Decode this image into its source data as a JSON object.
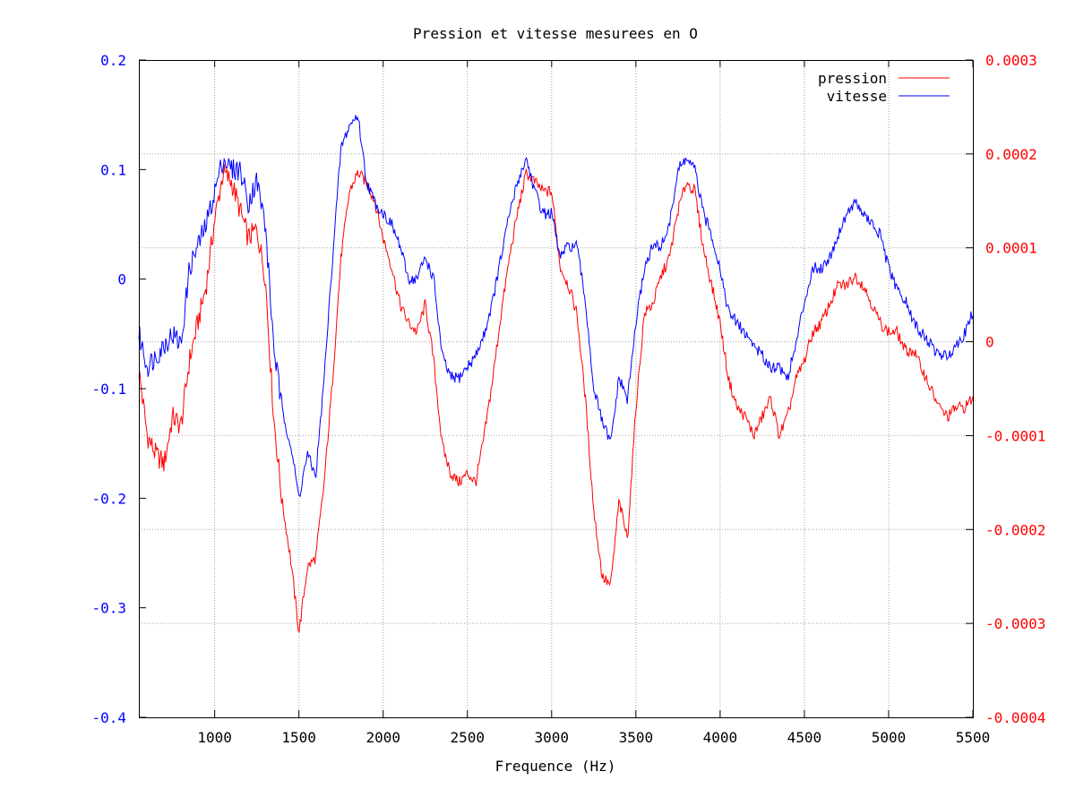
{
  "chart_data": {
    "type": "line",
    "title": "Pression et vitesse mesurees en O",
    "xlabel": "Frequence (Hz)",
    "ylabel_left": "",
    "ylabel_right": "",
    "xlim": [
      550,
      5500
    ],
    "ylim_left": [
      -0.4,
      0.2
    ],
    "ylim_right": [
      -0.0004,
      0.0003
    ],
    "xticks": [
      1000,
      1500,
      2000,
      2500,
      3000,
      3500,
      4000,
      4500,
      5000,
      5500
    ],
    "xtick_labels": [
      "1000",
      "1500",
      "2000",
      "2500",
      "3000",
      "3500",
      "4000",
      "4500",
      "5000",
      "5500"
    ],
    "yticks_left": [
      0.2,
      0.1,
      0,
      -0.1,
      -0.2,
      -0.3,
      -0.4
    ],
    "ytick_labels_left": [
      "0.2",
      "0.1",
      "0",
      "-0.1",
      "-0.2",
      "-0.3",
      "-0.4"
    ],
    "yticks_right": [
      0.0003,
      0.0002,
      0.0001,
      0,
      -0.0001,
      -0.0002,
      -0.0003,
      -0.0004
    ],
    "ytick_labels_right": [
      "0.0003",
      "0.0002",
      "0.0001",
      "0",
      "-0.0001",
      "-0.0002",
      "-0.0003",
      "-0.0004"
    ],
    "grid": true,
    "legend_position": "top-right",
    "colors": {
      "left_axis": "#0000ff",
      "right_axis": "#ff0000"
    },
    "series": [
      {
        "name": "pression",
        "axis": "right",
        "color": "#ff0000",
        "x": [
          550,
          600,
          650,
          700,
          750,
          800,
          850,
          900,
          950,
          1000,
          1050,
          1100,
          1150,
          1200,
          1250,
          1300,
          1350,
          1400,
          1450,
          1500,
          1550,
          1600,
          1650,
          1700,
          1750,
          1800,
          1850,
          1900,
          1950,
          2000,
          2050,
          2100,
          2150,
          2200,
          2250,
          2300,
          2350,
          2400,
          2450,
          2500,
          2550,
          2600,
          2650,
          2700,
          2750,
          2800,
          2850,
          2900,
          2950,
          3000,
          3050,
          3100,
          3150,
          3200,
          3250,
          3300,
          3350,
          3400,
          3450,
          3500,
          3550,
          3600,
          3650,
          3700,
          3750,
          3800,
          3850,
          3900,
          3950,
          4000,
          4050,
          4100,
          4150,
          4200,
          4250,
          4300,
          4350,
          4400,
          4450,
          4500,
          4550,
          4600,
          4650,
          4700,
          4750,
          4800,
          4850,
          4900,
          4950,
          5000,
          5050,
          5100,
          5150,
          5200,
          5250,
          5300,
          5350,
          5400,
          5450,
          5500
        ],
        "y": [
          -3e-05,
          -0.0001,
          -0.00012,
          -0.00013,
          -8e-05,
          -9e-05,
          -2e-05,
          2e-05,
          6e-05,
          0.00013,
          0.00018,
          0.00017,
          0.00014,
          0.00011,
          0.00012,
          7e-05,
          -8e-05,
          -0.00017,
          -0.00023,
          -0.00031,
          -0.00024,
          -0.00023,
          -0.00015,
          -4e-05,
          9e-05,
          0.00016,
          0.00018,
          0.00017,
          0.00015,
          0.00011,
          8e-05,
          4e-05,
          2e-05,
          1e-05,
          4e-05,
          -2e-05,
          -0.00011,
          -0.00014,
          -0.00015,
          -0.00014,
          -0.00015,
          -0.0001,
          -4e-05,
          3e-05,
          9e-05,
          0.00014,
          0.00018,
          0.00017,
          0.00016,
          0.00016,
          8e-05,
          6e-05,
          3e-05,
          -6e-05,
          -0.00018,
          -0.00025,
          -0.00026,
          -0.00017,
          -0.00021,
          -7e-05,
          3e-05,
          4e-05,
          7e-05,
          9e-05,
          0.00014,
          0.00017,
          0.00016,
          0.0001,
          6e-05,
          2e-05,
          -4e-05,
          -7e-05,
          -8e-05,
          -0.0001,
          -8e-05,
          -6e-05,
          -0.0001,
          -8e-05,
          -4e-05,
          -2e-05,
          1e-05,
          2e-05,
          4e-05,
          6e-05,
          6e-05,
          7e-05,
          6e-05,
          4e-05,
          2e-05,
          1e-05,
          1e-05,
          -1e-05,
          -1e-05,
          -3e-05,
          -5e-05,
          -7e-05,
          -8e-05,
          -7e-05,
          -7e-05,
          -6e-05
        ]
      },
      {
        "name": "vitesse",
        "axis": "left",
        "color": "#0000ff",
        "x": [
          550,
          600,
          650,
          700,
          750,
          800,
          850,
          900,
          950,
          1000,
          1050,
          1100,
          1150,
          1200,
          1250,
          1300,
          1350,
          1400,
          1450,
          1500,
          1550,
          1600,
          1650,
          1700,
          1750,
          1800,
          1850,
          1900,
          1950,
          2000,
          2050,
          2100,
          2150,
          2200,
          2250,
          2300,
          2350,
          2400,
          2450,
          2500,
          2550,
          2600,
          2650,
          2700,
          2750,
          2800,
          2850,
          2900,
          2950,
          3000,
          3050,
          3100,
          3150,
          3200,
          3250,
          3300,
          3350,
          3400,
          3450,
          3500,
          3550,
          3600,
          3650,
          3700,
          3750,
          3800,
          3850,
          3900,
          3950,
          4000,
          4050,
          4100,
          4150,
          4200,
          4250,
          4300,
          4350,
          4400,
          4450,
          4500,
          4550,
          4600,
          4650,
          4700,
          4750,
          4800,
          4850,
          4900,
          4950,
          5000,
          5050,
          5100,
          5150,
          5200,
          5250,
          5300,
          5350,
          5400,
          5450,
          5500
        ],
        "y": [
          -0.05,
          -0.08,
          -0.07,
          -0.06,
          -0.05,
          -0.06,
          0.01,
          0.03,
          0.05,
          0.08,
          0.11,
          0.1,
          0.1,
          0.07,
          0.09,
          0.05,
          -0.06,
          -0.12,
          -0.15,
          -0.2,
          -0.16,
          -0.18,
          -0.09,
          0.02,
          0.12,
          0.14,
          0.15,
          0.09,
          0.07,
          0.06,
          0.05,
          0.03,
          0.0,
          0.0,
          0.02,
          0.0,
          -0.07,
          -0.09,
          -0.09,
          -0.08,
          -0.07,
          -0.05,
          -0.02,
          0.02,
          0.06,
          0.09,
          0.11,
          0.08,
          0.06,
          0.06,
          0.02,
          0.03,
          0.03,
          -0.02,
          -0.1,
          -0.13,
          -0.15,
          -0.09,
          -0.11,
          -0.04,
          0.01,
          0.03,
          0.03,
          0.05,
          0.1,
          0.11,
          0.1,
          0.06,
          0.04,
          0.01,
          -0.03,
          -0.04,
          -0.05,
          -0.06,
          -0.07,
          -0.08,
          -0.08,
          -0.09,
          -0.06,
          -0.02,
          0.01,
          0.01,
          0.02,
          0.04,
          0.06,
          0.07,
          0.06,
          0.05,
          0.04,
          0.01,
          -0.01,
          -0.02,
          -0.04,
          -0.05,
          -0.06,
          -0.07,
          -0.07,
          -0.06,
          -0.05,
          -0.03
        ]
      }
    ]
  }
}
